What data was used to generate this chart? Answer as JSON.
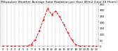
{
  "title": "Milwaukee Weather Average Solar Radiation per Hour W/m2 (Last 24 Hours)",
  "hours": [
    0,
    1,
    2,
    3,
    4,
    5,
    6,
    7,
    8,
    9,
    10,
    11,
    12,
    13,
    14,
    15,
    16,
    17,
    18,
    19,
    20,
    21,
    22,
    23
  ],
  "values": [
    0,
    0,
    0,
    0,
    0,
    0,
    2,
    15,
    55,
    130,
    220,
    310,
    260,
    290,
    240,
    180,
    110,
    50,
    10,
    2,
    0,
    0,
    0,
    0
  ],
  "line_color": "#ff0000",
  "bg_color": "#ffffff",
  "grid_color": "#999999",
  "ylim": [
    0,
    350
  ],
  "yticks": [
    0,
    50,
    100,
    150,
    200,
    250,
    300,
    350
  ],
  "ytick_labels": [
    "0",
    "50",
    "100",
    "150",
    "200",
    "250",
    "300",
    "350"
  ],
  "xtick_labels": [
    "0",
    "1",
    "2",
    "3",
    "4",
    "5",
    "6",
    "7",
    "8",
    "9",
    "10",
    "11",
    "12",
    "13",
    "14",
    "15",
    "16",
    "17",
    "18",
    "19",
    "20",
    "21",
    "22",
    "23"
  ],
  "title_fontsize": 3.2,
  "tick_fontsize": 2.8
}
